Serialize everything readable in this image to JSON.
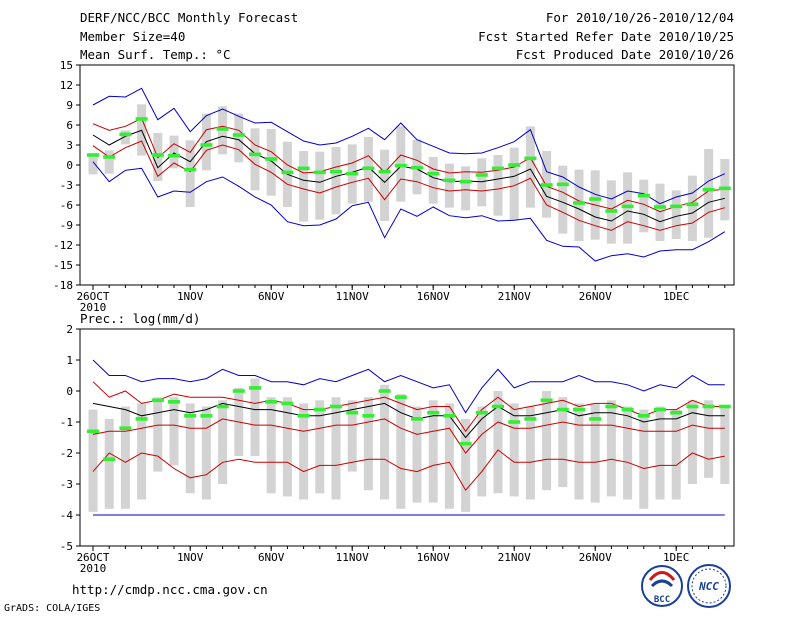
{
  "header": {
    "title": "DERF/NCC/BCC Monthly Forecast",
    "member_size": "Member Size=40",
    "variable": "Mean Surf. Temp.: °C",
    "period": "For 2010/10/26-2010/12/04",
    "started": "Fcst Started Refer Date 2010/10/25",
    "produced": "Fcst Produced Date 2010/10/26"
  },
  "footer": {
    "url": "http://cmdp.ncc.cma.gov.cn",
    "credit": "GrADS: COLA/IGES",
    "logo_bcc": "BCC",
    "logo_ncc": "NCC"
  },
  "x_labels": [
    {
      "day": 0,
      "text": "26OCT",
      "sub": "2010"
    },
    {
      "day": 6,
      "text": "1NOV"
    },
    {
      "day": 11,
      "text": "6NOV"
    },
    {
      "day": 16,
      "text": "11NOV"
    },
    {
      "day": 21,
      "text": "16NOV"
    },
    {
      "day": 26,
      "text": "21NOV"
    },
    {
      "day": 31,
      "text": "26NOV"
    },
    {
      "day": 36,
      "text": "1DEC"
    }
  ],
  "colors": {
    "max": "#0000cc",
    "p90": "#cc0000",
    "mean": "#000000",
    "obs": "#33ee33",
    "box": "#d3d3d3"
  },
  "chart_data": [
    {
      "type": "line",
      "title": "Mean Surf. Temp.: °C",
      "ylim": [
        -18,
        15
      ],
      "yticks": [
        15,
        12,
        9,
        6,
        3,
        0,
        -3,
        -6,
        -9,
        -12,
        -15,
        -18
      ],
      "x_days": 39,
      "series": [
        {
          "name": "max",
          "values": [
            9,
            10.3,
            10.2,
            11.5,
            6.8,
            8.5,
            5,
            7.4,
            8.4,
            7.3,
            6.3,
            6.4,
            5,
            3.6,
            3,
            3.3,
            4.3,
            5.5,
            3.8,
            6.3,
            3.8,
            2.8,
            1.8,
            1.7,
            1.8,
            2.6,
            3.5,
            5.3,
            -1,
            -1.8,
            -3.3,
            -4.4,
            -5.1,
            -3.9,
            -4.3,
            -5.8,
            -4.8,
            -4.2,
            -2.4,
            -1.3
          ]
        },
        {
          "name": "p90",
          "values": [
            6.2,
            5.2,
            5.8,
            7,
            1.1,
            3.2,
            1.9,
            5.3,
            5.8,
            5.2,
            3,
            2,
            0,
            -1.2,
            -1,
            -0.3,
            0.3,
            1.4,
            -1.1,
            1.5,
            0.7,
            -0.6,
            -1.2,
            -1,
            -1.1,
            -0.8,
            -0.3,
            1.1,
            -3.2,
            -4.1,
            -5.4,
            -6,
            -6.6,
            -5.3,
            -5.9,
            -7,
            -6.2,
            -5.6,
            -3.9,
            -3.6
          ]
        },
        {
          "name": "mean",
          "values": [
            4.5,
            3,
            4.3,
            5.2,
            -0.4,
            1.8,
            0.5,
            3.5,
            4.3,
            3.8,
            1.7,
            0.6,
            -1.4,
            -2.3,
            -2.6,
            -1.7,
            -1.1,
            -0.3,
            -2.6,
            -0.2,
            -0.6,
            -1.9,
            -2.5,
            -2.4,
            -2.5,
            -2.1,
            -1.7,
            -0.6,
            -4.7,
            -5.6,
            -6.6,
            -7.8,
            -8.4,
            -6.9,
            -7.4,
            -8.5,
            -7.7,
            -7.2,
            -5.6,
            -5
          ]
        },
        {
          "name": "p10",
          "values": [
            2.9,
            1.2,
            2.6,
            3.6,
            -1.7,
            0.3,
            -1,
            2.2,
            3,
            2.3,
            0.1,
            -1.1,
            -2.9,
            -3.6,
            -4.2,
            -3.3,
            -2.6,
            -2,
            -5.2,
            -2.1,
            -2.5,
            -3.4,
            -3.9,
            -3.7,
            -3.9,
            -3.6,
            -3.1,
            -2,
            -6,
            -7.1,
            -8.3,
            -9.1,
            -9.8,
            -8.5,
            -9.1,
            -9.8,
            -9.1,
            -8.7,
            -7.1,
            -6.4
          ]
        },
        {
          "name": "min",
          "values": [
            0.5,
            -2.5,
            -0.8,
            -0.5,
            -4.8,
            -3.9,
            -4.1,
            -2.5,
            -1.8,
            -3.2,
            -4.8,
            -6,
            -8.5,
            -9.1,
            -9,
            -8.1,
            -6.1,
            -5.6,
            -10.9,
            -6.6,
            -7.7,
            -6.3,
            -7.6,
            -7.9,
            -7.6,
            -8.4,
            -8.3,
            -8,
            -11.3,
            -12.2,
            -12.3,
            -14.4,
            -13.6,
            -13.3,
            -13.8,
            -12.9,
            -12.7,
            -12.7,
            -11.5,
            -10
          ]
        },
        {
          "name": "obs",
          "values": [
            1.5,
            1.2,
            4.6,
            6.9,
            1.5,
            1.4,
            -0.7,
            3,
            5.4,
            4.5,
            1.6,
            0.9,
            -1.1,
            -0.5,
            -1.1,
            -1,
            -1.3,
            -0.5,
            -1,
            -0.1,
            -0.4,
            -1.3,
            -2.3,
            -2.5,
            -1.5,
            -0.5,
            0,
            1,
            -3,
            -2.9,
            -5.7,
            -5.1,
            -6.9,
            -6.2,
            -4.6,
            -6.3,
            -6.2,
            -5.9,
            -3.7,
            -3.5
          ]
        }
      ],
      "boxes": [
        [
          1.7,
          -1.4
        ],
        [
          2.2,
          -1.3
        ],
        [
          5.2,
          3.1
        ],
        [
          9.1,
          1.4
        ],
        [
          4.8,
          -2.4
        ],
        [
          4.4,
          -0.5
        ],
        [
          3.7,
          -6.3
        ],
        [
          7.7,
          -0.8
        ],
        [
          8.8,
          1.6
        ],
        [
          7.7,
          0.4
        ],
        [
          5.5,
          -3.8
        ],
        [
          5.4,
          -4.6
        ],
        [
          3.5,
          -6.3
        ],
        [
          2.1,
          -8.5
        ],
        [
          2,
          -8.2
        ],
        [
          2.7,
          -7.4
        ],
        [
          3.1,
          -5.8
        ],
        [
          4.2,
          -5.5
        ],
        [
          2.3,
          -8.4
        ],
        [
          5.8,
          -5.5
        ],
        [
          3.8,
          -4.4
        ],
        [
          1.2,
          -5.8
        ],
        [
          0.2,
          -6.4
        ],
        [
          -0.2,
          -6.8
        ],
        [
          1,
          -6.2
        ],
        [
          1.5,
          -7.6
        ],
        [
          2.6,
          -8.3
        ],
        [
          5.8,
          -6.4
        ],
        [
          2.1,
          -7.9
        ],
        [
          -0.1,
          -10.3
        ],
        [
          -0.7,
          -11.4
        ],
        [
          -0.8,
          -11.2
        ],
        [
          -2.3,
          -11.8
        ],
        [
          -1.1,
          -11.8
        ],
        [
          -2.2,
          -10.1
        ],
        [
          -2.8,
          -11.4
        ],
        [
          -3.8,
          -11.1
        ],
        [
          -1.6,
          -11.4
        ],
        [
          2.4,
          -10.9
        ],
        [
          0.9,
          -8.3
        ]
      ]
    },
    {
      "type": "line",
      "title": "Prec.: log(mm/d)",
      "ylim": [
        -5,
        2
      ],
      "yticks": [
        2,
        1,
        0,
        -1,
        -2,
        -3,
        -4,
        -5
      ],
      "x_days": 39,
      "series": [
        {
          "name": "max",
          "values": [
            1,
            0.5,
            0.5,
            0.3,
            0.4,
            0.4,
            0.3,
            0.4,
            0.7,
            0.5,
            0.5,
            0.3,
            0.3,
            0.2,
            0.4,
            0.3,
            0.5,
            0.7,
            0.3,
            0.5,
            0.3,
            0.1,
            0.2,
            -0.7,
            0.1,
            0.7,
            0.1,
            0.3,
            0.3,
            0.3,
            0.5,
            0.3,
            0.3,
            0.2,
            0,
            0.2,
            0.1,
            0.5,
            0.2,
            0.2
          ]
        },
        {
          "name": "p90",
          "values": [
            0.3,
            -0.2,
            0,
            -0.4,
            -0.3,
            -0.1,
            -0.2,
            -0.2,
            -0.2,
            -0.3,
            -0.4,
            -0.3,
            -0.4,
            -0.6,
            -0.6,
            -0.5,
            -0.4,
            -0.3,
            -0.2,
            -0.4,
            -0.6,
            -0.5,
            -0.5,
            -1.3,
            -0.6,
            -0.2,
            -0.6,
            -0.5,
            -0.4,
            -0.3,
            -0.5,
            -0.4,
            -0.4,
            -0.6,
            -0.8,
            -0.6,
            -0.6,
            -0.3,
            -0.5,
            -0.5
          ]
        },
        {
          "name": "mean",
          "values": [
            -0.4,
            -0.5,
            -0.6,
            -0.8,
            -0.7,
            -0.6,
            -0.7,
            -0.6,
            -0.4,
            -0.5,
            -0.6,
            -0.6,
            -0.7,
            -0.8,
            -0.8,
            -0.7,
            -0.6,
            -0.5,
            -0.4,
            -0.7,
            -0.9,
            -0.8,
            -0.8,
            -1.5,
            -0.9,
            -0.5,
            -0.8,
            -0.8,
            -0.7,
            -0.6,
            -0.8,
            -0.7,
            -0.7,
            -0.8,
            -1,
            -0.9,
            -0.9,
            -0.7,
            -0.8,
            -0.8
          ]
        },
        {
          "name": "p10",
          "values": [
            -1.4,
            -1.3,
            -1.3,
            -1.2,
            -1.1,
            -1.1,
            -1.2,
            -1.2,
            -0.9,
            -1,
            -1.1,
            -1.1,
            -1.2,
            -1.3,
            -1.2,
            -1.1,
            -1.1,
            -1,
            -0.9,
            -1.2,
            -1.4,
            -1.3,
            -1.2,
            -2,
            -1.4,
            -1,
            -1.2,
            -1.2,
            -1.1,
            -1,
            -1.1,
            -1.1,
            -1.1,
            -1.2,
            -1.3,
            -1.3,
            -1.3,
            -1.1,
            -1.2,
            -1.2
          ]
        },
        {
          "name": "p10b",
          "values": [
            -2.6,
            -2,
            -2.3,
            -2,
            -2.1,
            -2.5,
            -2.8,
            -2.7,
            -2.3,
            -2.2,
            -2.3,
            -2.3,
            -2.3,
            -2.6,
            -2.4,
            -2.4,
            -2.3,
            -2.2,
            -2.2,
            -2.5,
            -2.6,
            -2.4,
            -2.3,
            -3.2,
            -2.6,
            -1.9,
            -2.3,
            -2.3,
            -2.2,
            -2.2,
            -2.3,
            -2.3,
            -2.2,
            -2.3,
            -2.5,
            -2.4,
            -2.4,
            -2.0,
            -2.2,
            -2.1
          ]
        },
        {
          "name": "floor",
          "values": [
            -4,
            -4,
            -4,
            -4,
            -4,
            -4,
            -4,
            -4,
            -4,
            -4,
            -4,
            -4,
            -4,
            -4,
            -4,
            -4,
            -4,
            -4,
            -4,
            -4,
            -4,
            -4,
            -4,
            -4,
            -4,
            -4,
            -4,
            -4,
            -4,
            -4,
            -4,
            -4,
            -4,
            -4,
            -4,
            -4,
            -4,
            -4,
            -4,
            -4
          ]
        },
        {
          "name": "obs",
          "values": [
            -1.3,
            -2.2,
            -1.2,
            -0.9,
            -0.3,
            -0.35,
            -0.8,
            -0.8,
            -0.5,
            0,
            0.1,
            -0.35,
            -0.4,
            -0.8,
            -0.6,
            -0.5,
            -0.7,
            -0.8,
            0,
            -0.2,
            -0.9,
            -0.7,
            -0.8,
            -1.7,
            -0.7,
            -0.5,
            -1,
            -0.9,
            -0.3,
            -0.6,
            -0.6,
            -0.9,
            -0.5,
            -0.6,
            -0.8,
            -0.6,
            -0.7,
            -0.5,
            -0.5,
            -0.5
          ]
        }
      ],
      "boxes": [
        [
          -0.6,
          -3.9
        ],
        [
          -0.9,
          -3.8
        ],
        [
          -0.5,
          -3.8
        ],
        [
          -0.4,
          -3.5
        ],
        [
          -0.2,
          -2.6
        ],
        [
          -0.2,
          -2.4
        ],
        [
          -0.4,
          -3.3
        ],
        [
          -0.5,
          -3.5
        ],
        [
          -0.3,
          -3
        ],
        [
          0.1,
          -2.1
        ],
        [
          0.4,
          -2.1
        ],
        [
          -0.2,
          -3.3
        ],
        [
          -0.2,
          -3.4
        ],
        [
          -0.4,
          -3.5
        ],
        [
          -0.3,
          -3.3
        ],
        [
          -0.2,
          -3.5
        ],
        [
          -0.3,
          -2.6
        ],
        [
          -0.2,
          -3.2
        ],
        [
          0.2,
          -3.5
        ],
        [
          -0.1,
          -3.8
        ],
        [
          -0.5,
          -3.6
        ],
        [
          -0.3,
          -3.6
        ],
        [
          -0.4,
          -3.8
        ],
        [
          -0.9,
          -3.9
        ],
        [
          -0.5,
          -3.4
        ],
        [
          0,
          -3.3
        ],
        [
          -0.4,
          -3.4
        ],
        [
          -0.5,
          -3.5
        ],
        [
          0,
          -3.2
        ],
        [
          -0.2,
          -3.1
        ],
        [
          -0.4,
          -3.5
        ],
        [
          -0.4,
          -3.6
        ],
        [
          -0.3,
          -3.4
        ],
        [
          -0.5,
          -3.5
        ],
        [
          -0.6,
          -3.8
        ],
        [
          -0.5,
          -3.5
        ],
        [
          -0.6,
          -3.5
        ],
        [
          -0.3,
          -3
        ],
        [
          -0.3,
          -2.8
        ],
        [
          -0.5,
          -3
        ]
      ]
    }
  ]
}
